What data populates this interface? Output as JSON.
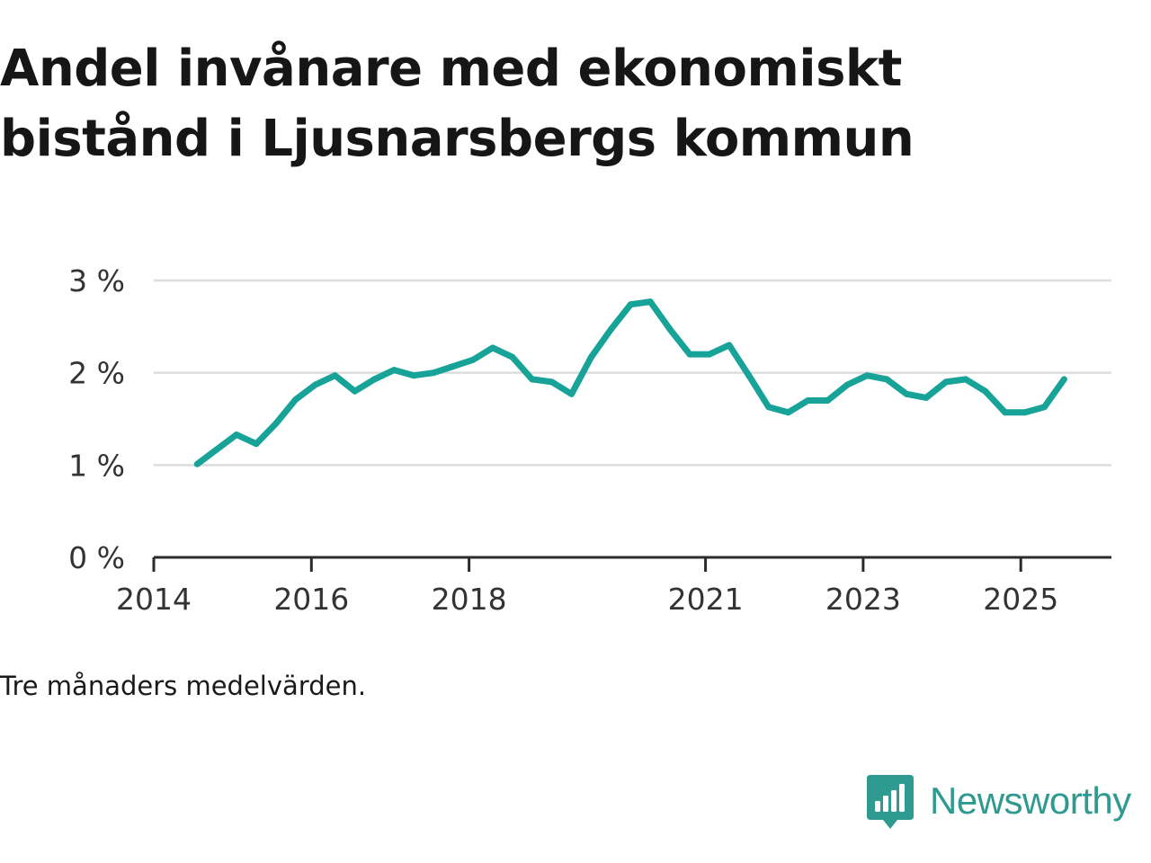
{
  "title": "Andel invånare med ekonomiskt bistånd i Ljusnarsbergs kommun",
  "footnote": "Tre månaders medelvärden.",
  "brand": {
    "name": "Newsworthy",
    "icon": "bar-chart-speech-bubble-icon",
    "color": "#2f9a8f"
  },
  "chart_data": {
    "type": "line",
    "title": "Andel invånare med ekonomiskt bistånd i Ljusnarsbergs kommun",
    "xlabel": "",
    "ylabel": "",
    "xlim": [
      2014,
      2026.15
    ],
    "ylim": [
      0,
      3
    ],
    "x_ticks": [
      {
        "value": 2014,
        "label": "2014"
      },
      {
        "value": 2016,
        "label": "2016"
      },
      {
        "value": 2018,
        "label": "2018"
      },
      {
        "value": 2021,
        "label": "2021"
      },
      {
        "value": 2023,
        "label": "2023"
      },
      {
        "value": 2025,
        "label": "2025"
      }
    ],
    "y_ticks": [
      {
        "value": 0,
        "label": "0 %"
      },
      {
        "value": 1,
        "label": "1 %"
      },
      {
        "value": 2,
        "label": "2 %"
      },
      {
        "value": 3,
        "label": "3 %"
      }
    ],
    "grid": true,
    "line_color": "#17a398",
    "series": [
      {
        "name": "Andel invånare med ekonomiskt bistånd",
        "x": [
          2014.55,
          2014.8,
          2015.05,
          2015.3,
          2015.55,
          2015.8,
          2016.05,
          2016.3,
          2016.55,
          2016.8,
          2017.05,
          2017.3,
          2017.55,
          2017.8,
          2018.05,
          2018.3,
          2018.55,
          2018.8,
          2019.05,
          2019.3,
          2019.55,
          2019.8,
          2020.05,
          2020.3,
          2020.55,
          2020.8,
          2021.05,
          2021.3,
          2021.55,
          2021.8,
          2022.05,
          2022.3,
          2022.55,
          2022.8,
          2023.05,
          2023.3,
          2023.55,
          2023.8,
          2024.05,
          2024.3,
          2024.55,
          2024.8,
          2025.05,
          2025.3,
          2025.55
        ],
        "values": [
          1.01,
          1.17,
          1.33,
          1.23,
          1.45,
          1.71,
          1.87,
          1.97,
          1.8,
          1.93,
          2.03,
          1.97,
          2.0,
          2.07,
          2.14,
          2.27,
          2.17,
          1.93,
          1.9,
          1.77,
          2.17,
          2.47,
          2.74,
          2.77,
          2.47,
          2.2,
          2.2,
          2.3,
          1.97,
          1.63,
          1.57,
          1.7,
          1.7,
          1.87,
          1.97,
          1.93,
          1.77,
          1.73,
          1.9,
          1.93,
          1.8,
          1.57,
          1.57,
          1.63,
          1.93
        ]
      }
    ]
  }
}
